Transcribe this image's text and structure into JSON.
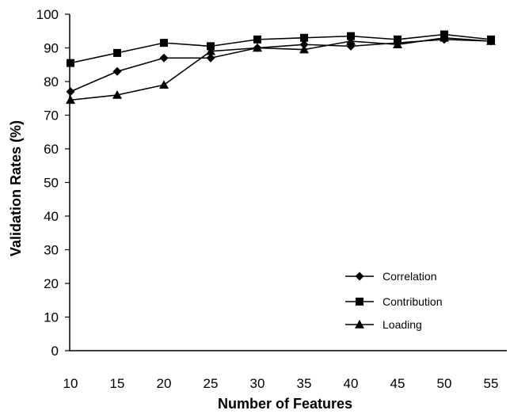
{
  "chart_data": {
    "type": "line",
    "xlabel": "Number of Features",
    "ylabel": "Validation Rates (%)",
    "x": [
      10,
      15,
      20,
      25,
      30,
      35,
      40,
      45,
      50,
      55
    ],
    "xticks": [
      "10",
      "15",
      "20",
      "25",
      "30",
      "35",
      "40",
      "45",
      "50",
      "55"
    ],
    "yticks": [
      "0",
      "10",
      "20",
      "30",
      "40",
      "50",
      "60",
      "70",
      "80",
      "90",
      "100"
    ],
    "ylim": [
      0,
      100
    ],
    "grid": false,
    "legend_position": "bottom-right",
    "series": [
      {
        "name": "Correlation",
        "marker": "diamond",
        "values": [
          77,
          83,
          87,
          87,
          90,
          91,
          90.5,
          91.5,
          92.5,
          92
        ]
      },
      {
        "name": "Contribution",
        "marker": "square",
        "values": [
          85.5,
          88.5,
          91.5,
          90.5,
          92.5,
          93,
          93.5,
          92.5,
          94,
          92.5
        ]
      },
      {
        "name": "Loading",
        "marker": "triangle",
        "values": [
          74.5,
          76,
          79,
          89,
          90,
          89.5,
          92,
          91,
          93,
          92
        ]
      }
    ]
  }
}
